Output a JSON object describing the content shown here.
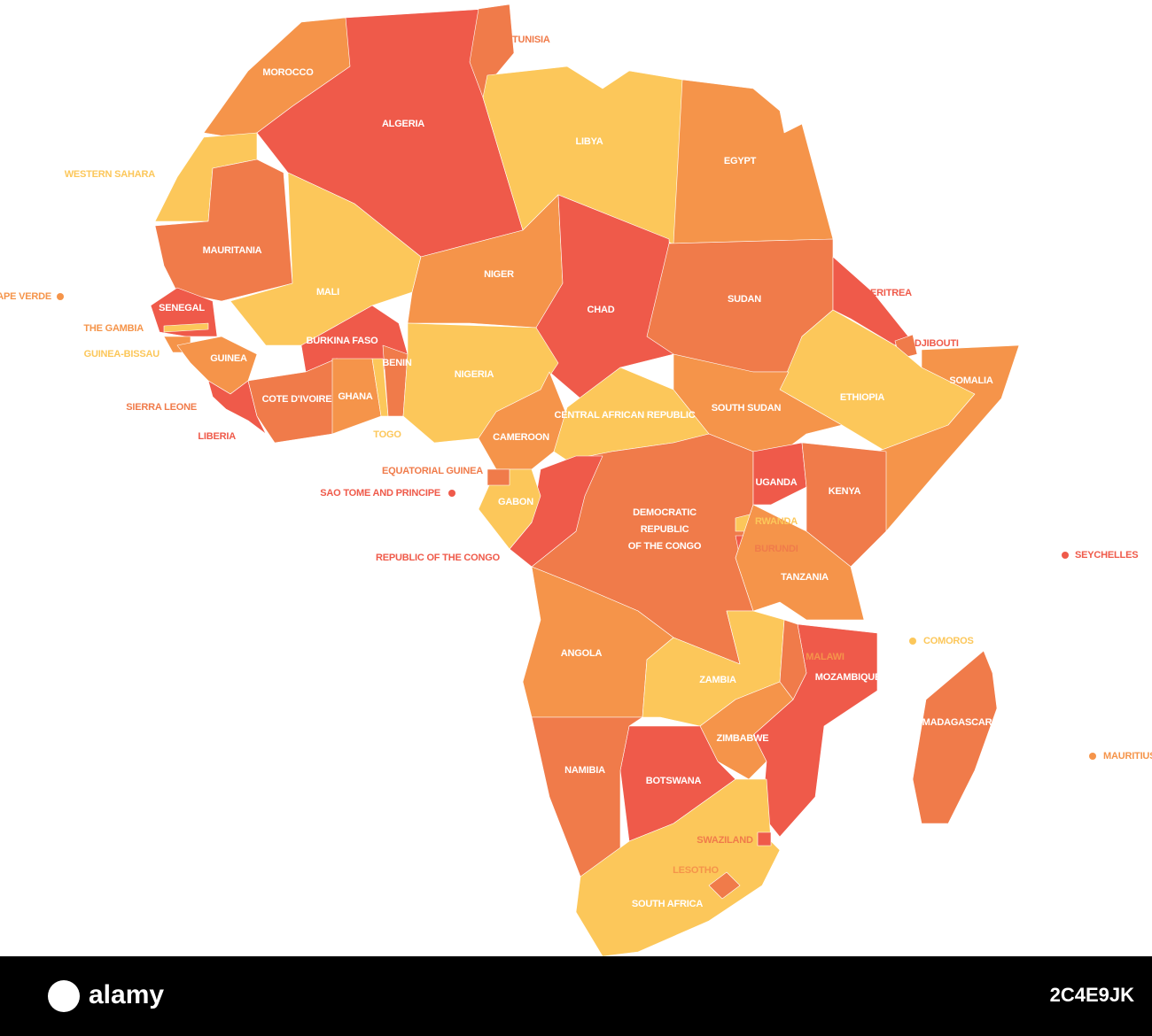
{
  "countries": [
    "TUNISIA",
    "MOROCCO",
    "ALGERIA",
    "LIBYA",
    "EGYPT",
    "WESTERN SAHARA",
    "MAURITANIA",
    "MALI",
    "NIGER",
    "CHAD",
    "SUDAN",
    "ERITREA",
    "CAPE VERDE",
    "SENEGAL",
    "THE GAMBIA",
    "GUINEA-BISSAU",
    "GUINEA",
    "BURKINA FASO",
    "BENIN",
    "NIGERIA",
    "DJIBOUTI",
    "SOMALIA",
    "ETHIOPIA",
    "SIERRA LEONE",
    "COTE D'IVOIRE",
    "GHANA",
    "CENTRAL AFRICAN REPUBLIC",
    "SOUTH SUDAN",
    "LIBERIA",
    "TOGO",
    "CAMEROON",
    "EQUATORIAL GUINEA",
    "SAO TOME AND PRINCIPE",
    "UGANDA",
    "KENYA",
    "GABON",
    [
      "DEMOCRATIC",
      "REPUBLIC",
      "OF THE CONGO"
    ],
    "RWANDA",
    "BURUNDI",
    "REPUBLIC OF THE CONGO",
    "SEYCHELLES",
    "TANZANIA",
    "COMOROS",
    "ANGOLA",
    "MALAWI",
    "ZAMBIA",
    "MOZAMBIQUE",
    "MADAGASCAR",
    "ZIMBABWE",
    "MAURITIUS",
    "NAMIBIA",
    "BOTSWANA",
    "SWAZILAND",
    "LESOTHO",
    "SOUTH AFRICA"
  ],
  "watermark": {
    "brand": "alamy",
    "image_id": "2C4E9JK"
  }
}
